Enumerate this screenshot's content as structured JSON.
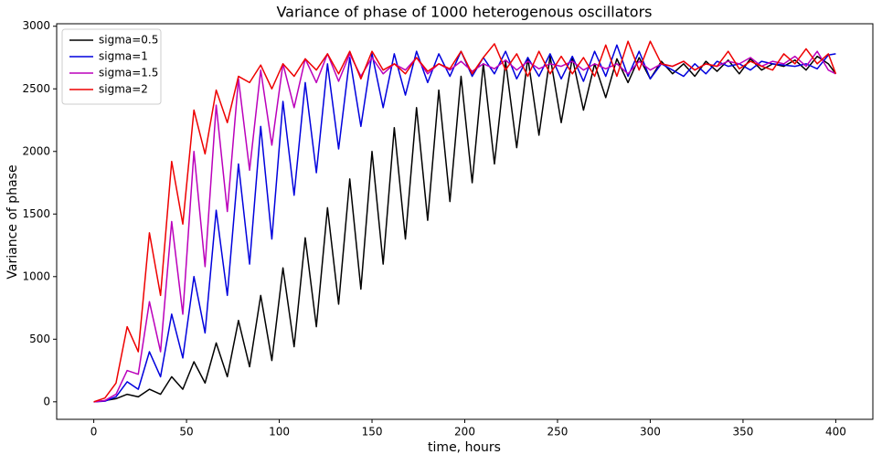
{
  "chart_data": {
    "type": "line",
    "title": "Variance of phase of 1000 heterogenous oscillators",
    "x_label": "time, hours",
    "y_label": "Variance of phase",
    "x": [
      0,
      6,
      12,
      18,
      24,
      30,
      36,
      42,
      48,
      54,
      60,
      66,
      72,
      78,
      84,
      90,
      96,
      102,
      108,
      114,
      120,
      126,
      132,
      138,
      144,
      150,
      156,
      162,
      168,
      174,
      180,
      186,
      192,
      198,
      204,
      210,
      216,
      222,
      228,
      234,
      240,
      246,
      252,
      258,
      264,
      270,
      276,
      282,
      288,
      294,
      300,
      306,
      312,
      318,
      324,
      330,
      336,
      342,
      348,
      354,
      360,
      366,
      372,
      378,
      384,
      390,
      396,
      400
    ],
    "series": [
      {
        "name": "sigma=0.5",
        "color": "#000000",
        "values": [
          0,
          10,
          25,
          60,
          40,
          100,
          60,
          200,
          100,
          320,
          150,
          470,
          200,
          650,
          280,
          850,
          330,
          1070,
          440,
          1310,
          600,
          1550,
          780,
          1780,
          900,
          2000,
          1100,
          2190,
          1300,
          2350,
          1450,
          2490,
          1600,
          2600,
          1750,
          2700,
          1900,
          2720,
          2030,
          2750,
          2130,
          2760,
          2230,
          2750,
          2330,
          2700,
          2430,
          2740,
          2550,
          2750,
          2580,
          2720,
          2620,
          2700,
          2600,
          2720,
          2640,
          2730,
          2620,
          2740,
          2650,
          2700,
          2680,
          2730,
          2650,
          2760,
          2700,
          2620
        ]
      },
      {
        "name": "sigma=1",
        "color": "#0000dd",
        "values": [
          0,
          5,
          40,
          160,
          100,
          400,
          200,
          700,
          350,
          1000,
          550,
          1530,
          850,
          1900,
          1100,
          2200,
          1300,
          2400,
          1650,
          2550,
          1830,
          2700,
          2020,
          2750,
          2200,
          2780,
          2350,
          2780,
          2450,
          2800,
          2550,
          2780,
          2600,
          2800,
          2600,
          2750,
          2620,
          2800,
          2580,
          2750,
          2600,
          2780,
          2580,
          2760,
          2560,
          2800,
          2600,
          2850,
          2600,
          2800,
          2580,
          2700,
          2650,
          2600,
          2700,
          2620,
          2720,
          2680,
          2700,
          2650,
          2720,
          2700,
          2690,
          2680,
          2700,
          2660,
          2770,
          2780
        ]
      },
      {
        "name": "sigma=1.5",
        "color": "#bb00bb",
        "values": [
          0,
          10,
          60,
          250,
          220,
          800,
          400,
          1440,
          700,
          2000,
          1080,
          2370,
          1520,
          2580,
          1850,
          2650,
          2050,
          2700,
          2350,
          2740,
          2550,
          2780,
          2560,
          2780,
          2600,
          2750,
          2620,
          2700,
          2650,
          2750,
          2620,
          2700,
          2650,
          2720,
          2640,
          2700,
          2660,
          2730,
          2650,
          2720,
          2660,
          2700,
          2680,
          2720,
          2650,
          2700,
          2660,
          2700,
          2620,
          2720,
          2650,
          2700,
          2680,
          2720,
          2650,
          2700,
          2680,
          2720,
          2700,
          2750,
          2680,
          2720,
          2700,
          2760,
          2680,
          2800,
          2650,
          2620
        ]
      },
      {
        "name": "sigma=2",
        "color": "#ee0000",
        "values": [
          0,
          30,
          150,
          600,
          400,
          1350,
          850,
          1920,
          1420,
          2330,
          1980,
          2490,
          2230,
          2600,
          2550,
          2690,
          2500,
          2700,
          2600,
          2740,
          2650,
          2780,
          2620,
          2800,
          2580,
          2800,
          2650,
          2700,
          2620,
          2750,
          2640,
          2700,
          2660,
          2800,
          2620,
          2750,
          2860,
          2650,
          2780,
          2600,
          2800,
          2620,
          2760,
          2620,
          2750,
          2600,
          2850,
          2600,
          2880,
          2650,
          2880,
          2700,
          2680,
          2720,
          2650,
          2700,
          2680,
          2800,
          2660,
          2720,
          2680,
          2650,
          2780,
          2700,
          2820,
          2700,
          2780,
          2620
        ]
      }
    ],
    "xlim": [
      -20,
      420
    ],
    "xticks": [
      0,
      50,
      100,
      150,
      200,
      250,
      300,
      350,
      400
    ],
    "ylim": [
      -140,
      3020
    ],
    "yticks": [
      0,
      500,
      1000,
      1500,
      2000,
      2500,
      3000
    ],
    "legend": "upper left",
    "grid": false
  }
}
